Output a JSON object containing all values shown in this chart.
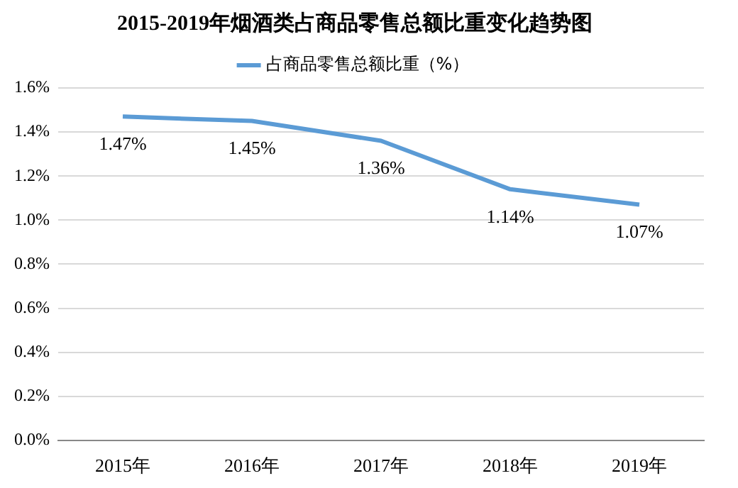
{
  "chart_data": {
    "type": "line",
    "title": "2015-2019年烟酒类占商品零售总额比重变化趋势图",
    "categories": [
      "2015年",
      "2016年",
      "2017年",
      "2018年",
      "2019年"
    ],
    "series": [
      {
        "name": "占商品零售总额比重（%）",
        "color": "#5b9bd5",
        "values": [
          1.47,
          1.45,
          1.36,
          1.14,
          1.07
        ],
        "value_labels": [
          "1.47%",
          "1.45%",
          "1.36%",
          "1.14%",
          "1.07%"
        ]
      }
    ],
    "ylim": [
      0,
      1.6
    ],
    "yticks": [
      {
        "value": 0,
        "label": "0.0%"
      },
      {
        "value": 0.2,
        "label": "0.2%"
      },
      {
        "value": 0.4,
        "label": "0.4%"
      },
      {
        "value": 0.6,
        "label": "0.6%"
      },
      {
        "value": 0.8,
        "label": "0.8%"
      },
      {
        "value": 1.0,
        "label": "1.0%"
      },
      {
        "value": 1.2,
        "label": "1.2%"
      },
      {
        "value": 1.4,
        "label": "1.4%"
      },
      {
        "value": 1.6,
        "label": "1.6%"
      }
    ],
    "grid": "y",
    "legend": "top",
    "marker": "none",
    "line_style": "solid"
  }
}
